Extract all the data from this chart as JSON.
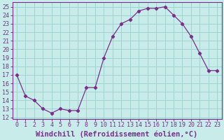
{
  "x": [
    0,
    1,
    2,
    3,
    4,
    5,
    6,
    7,
    8,
    9,
    10,
    11,
    12,
    13,
    14,
    15,
    16,
    17,
    18,
    19,
    20,
    21,
    22,
    23
  ],
  "y": [
    17.0,
    14.5,
    14.0,
    13.0,
    12.5,
    13.0,
    12.8,
    12.8,
    15.5,
    15.5,
    19.0,
    21.5,
    23.0,
    23.5,
    24.5,
    24.8,
    24.8,
    25.0,
    24.0,
    23.0,
    21.5,
    19.5,
    17.5,
    17.5
  ],
  "line_color": "#7b2d8b",
  "marker": "D",
  "marker_size": 2.2,
  "bg_color": "#c8ecea",
  "grid_color": "#a0d4d0",
  "xlabel": "Windchill (Refroidissement éolien,°C)",
  "xlabel_fontsize": 7.5,
  "ylim": [
    11.8,
    25.5
  ],
  "xlim": [
    -0.5,
    23.5
  ],
  "yticks": [
    12,
    13,
    14,
    15,
    16,
    17,
    18,
    19,
    20,
    21,
    22,
    23,
    24,
    25
  ],
  "xtick_labels": [
    "0",
    "1",
    "2",
    "3",
    "4",
    "5",
    "6",
    "7",
    "8",
    "9",
    "10",
    "11",
    "12",
    "13",
    "14",
    "15",
    "16",
    "17",
    "18",
    "19",
    "20",
    "21",
    "22",
    "23"
  ],
  "tick_fontsize": 6.0
}
